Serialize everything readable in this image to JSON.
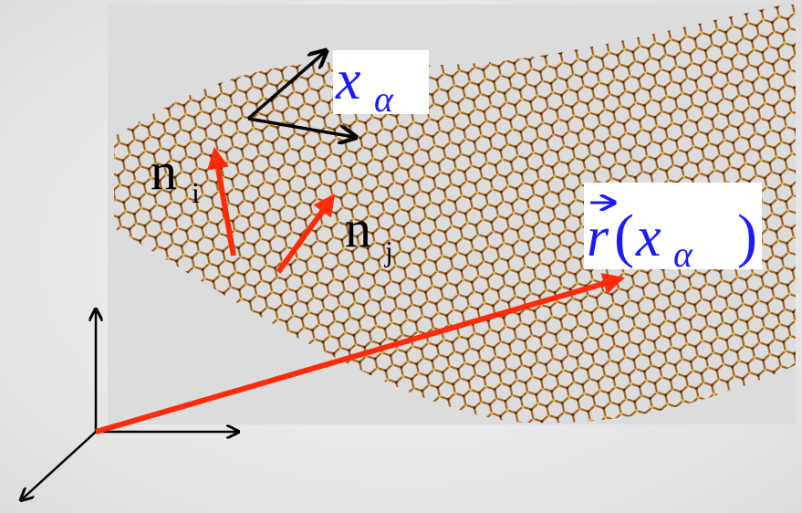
{
  "labels": {
    "frame_coordinate": {
      "base": "x",
      "sub": "α"
    },
    "normal_i": {
      "base": "n",
      "sub": "i"
    },
    "normal_j": {
      "base": "n",
      "sub": "j"
    },
    "position": {
      "vector": "r",
      "open": "(",
      "base": "x",
      "sub": "α",
      "close": ")"
    }
  }
}
